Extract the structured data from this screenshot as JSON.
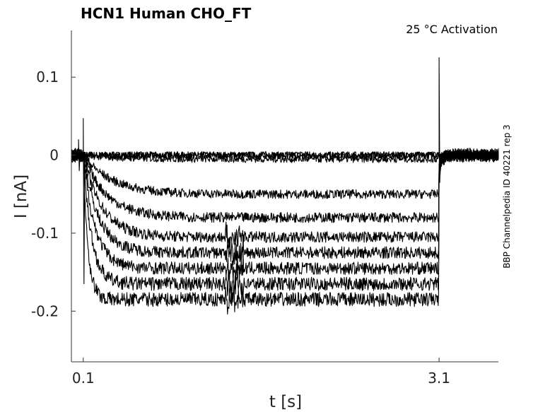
{
  "chart_data": {
    "type": "line",
    "title": "HCN1  Human  CHO_FT",
    "subtitle": "25 °C  Activation",
    "xlabel": "t [s]",
    "ylabel": "I [nA]",
    "side_label": "BBP Channelpedia ID 40221 rep 3",
    "xlim": [
      0.0,
      3.6
    ],
    "ylim": [
      -0.265,
      0.16
    ],
    "xticks": [
      0.1,
      3.1
    ],
    "xtick_labels": [
      "0.1",
      "3.1"
    ],
    "yticks": [
      0.1,
      0,
      -0.1,
      -0.2
    ],
    "ytick_labels": [
      "0.1",
      "0",
      "-0.1",
      "-0.2"
    ],
    "pulse_start_s": 0.1,
    "pulse_end_s": 3.1,
    "grid": false,
    "legend": "none",
    "series_steady_state_nA": [
      0.0,
      0.0,
      -0.005,
      -0.05,
      -0.08,
      -0.105,
      -0.125,
      -0.145,
      -0.165,
      -0.185
    ],
    "color": "#000000"
  }
}
